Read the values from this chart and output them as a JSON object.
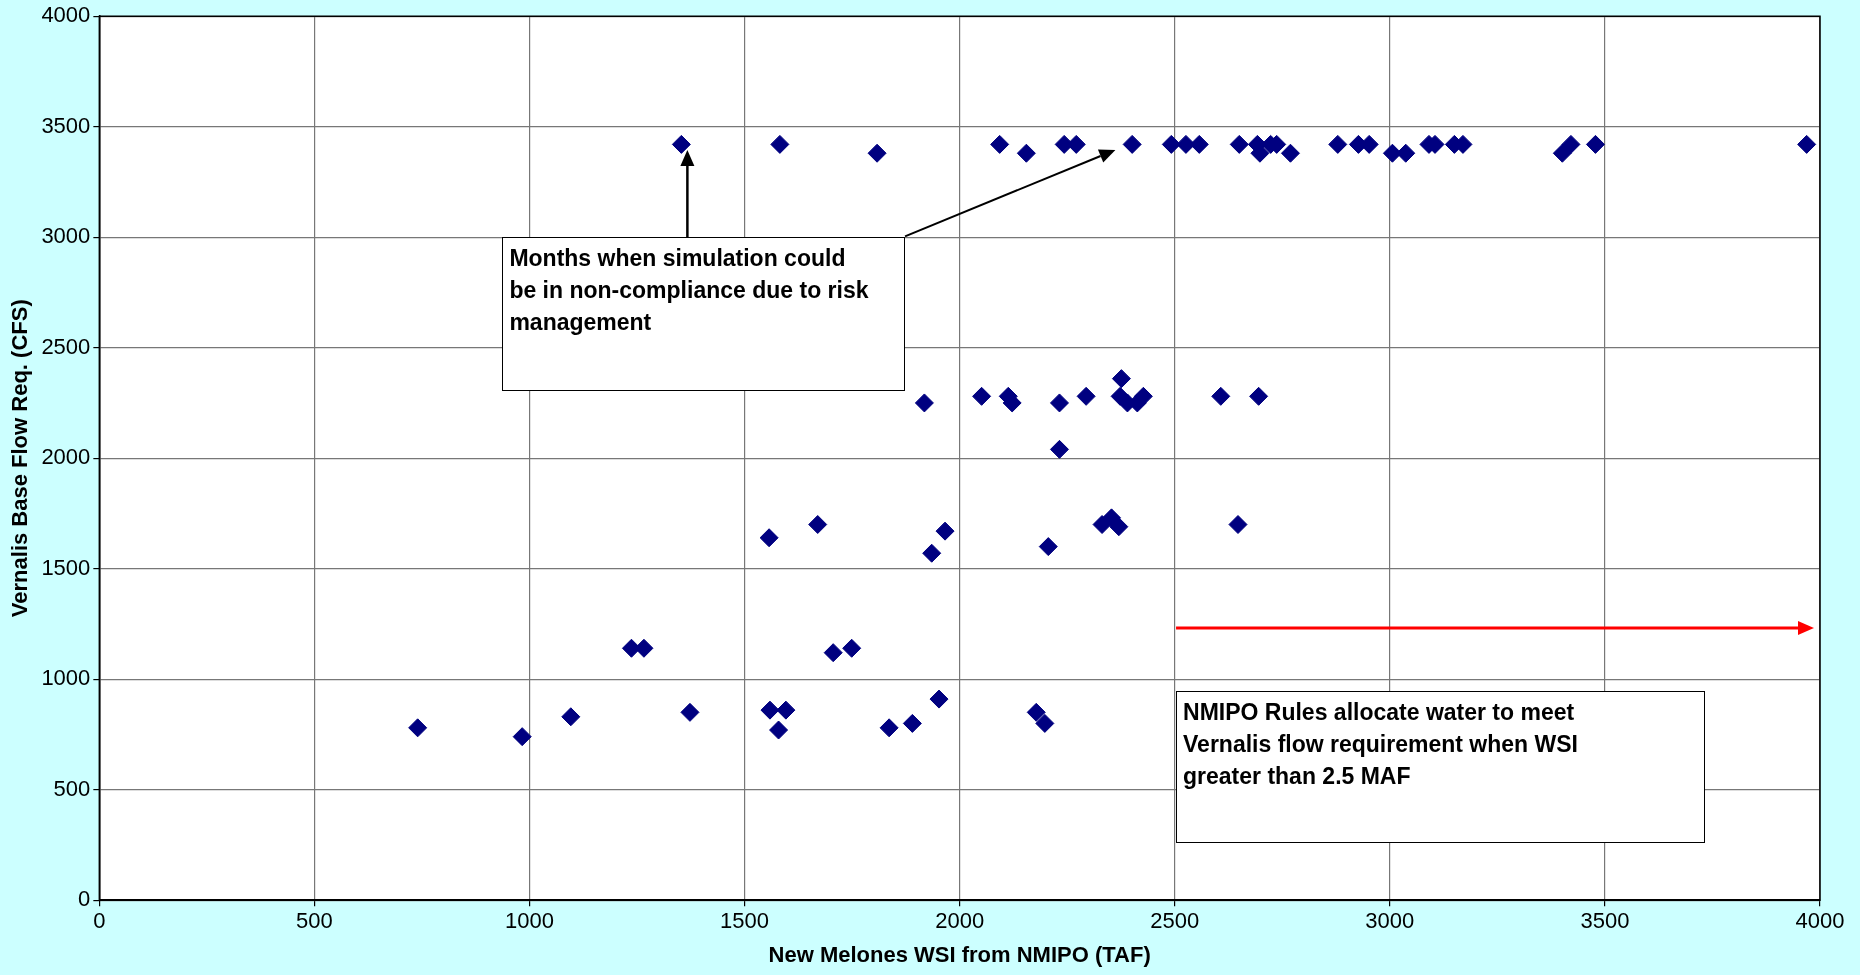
{
  "chart_data": {
    "type": "scatter",
    "xlabel": "New Melones WSI from NMIPO (TAF)",
    "ylabel": "Vernalis Base Flow Req. (CFS)",
    "xlim": [
      0,
      4000
    ],
    "xticks": [
      0,
      500,
      1000,
      1500,
      2000,
      2500,
      3000,
      3500,
      4000
    ],
    "ylim": [
      0,
      4000
    ],
    "yticks": [
      0,
      500,
      1000,
      1500,
      2000,
      2500,
      3000,
      3500,
      4000
    ],
    "grid": true,
    "legend": false,
    "marker": "diamond",
    "annotations": [
      "Months when simulation could be in non-compliance due to risk management",
      "NMIPO Rules allocate water to meet Vernalis flow requirement when  WSI greater than 2.5 MAF"
    ],
    "series": [
      {
        "color": "#000080",
        "x": [
          1353,
          1582,
          1808,
          2093,
          2155,
          2243,
          2271,
          2401,
          2492,
          2526,
          2557,
          2650,
          2692,
          2698,
          2723,
          2737,
          2769,
          2879,
          2927,
          2952,
          3006,
          3037,
          3091,
          3105,
          3150,
          3170,
          3401,
          3421,
          3478,
          3969,
          1918,
          2051,
          2113,
          2122,
          2232,
          2294,
          2376,
          2373,
          2390,
          2413,
          2427,
          2607,
          2695,
          2232,
          1557,
          1670,
          1966,
          1935,
          2206,
          2331,
          2353,
          2370,
          2647,
          1237,
          1266,
          1706,
          1749,
          740,
          983,
          1096,
          1373,
          1559,
          1596,
          1579,
          1836,
          1890,
          1952,
          2178,
          2198
        ],
        "values": [
          3420,
          3420,
          3380,
          3420,
          3380,
          3420,
          3420,
          3420,
          3420,
          3420,
          3420,
          3420,
          3420,
          3380,
          3420,
          3420,
          3380,
          3420,
          3420,
          3420,
          3380,
          3380,
          3420,
          3420,
          3420,
          3420,
          3380,
          3420,
          3420,
          3420,
          2250,
          2280,
          2280,
          2250,
          2250,
          2280,
          2360,
          2280,
          2250,
          2250,
          2280,
          2280,
          2280,
          2040,
          1640,
          1700,
          1670,
          1570,
          1600,
          1700,
          1730,
          1690,
          1700,
          1140,
          1140,
          1120,
          1140,
          780,
          740,
          830,
          850,
          860,
          860,
          770,
          780,
          800,
          910,
          850,
          800
        ]
      }
    ]
  }
}
